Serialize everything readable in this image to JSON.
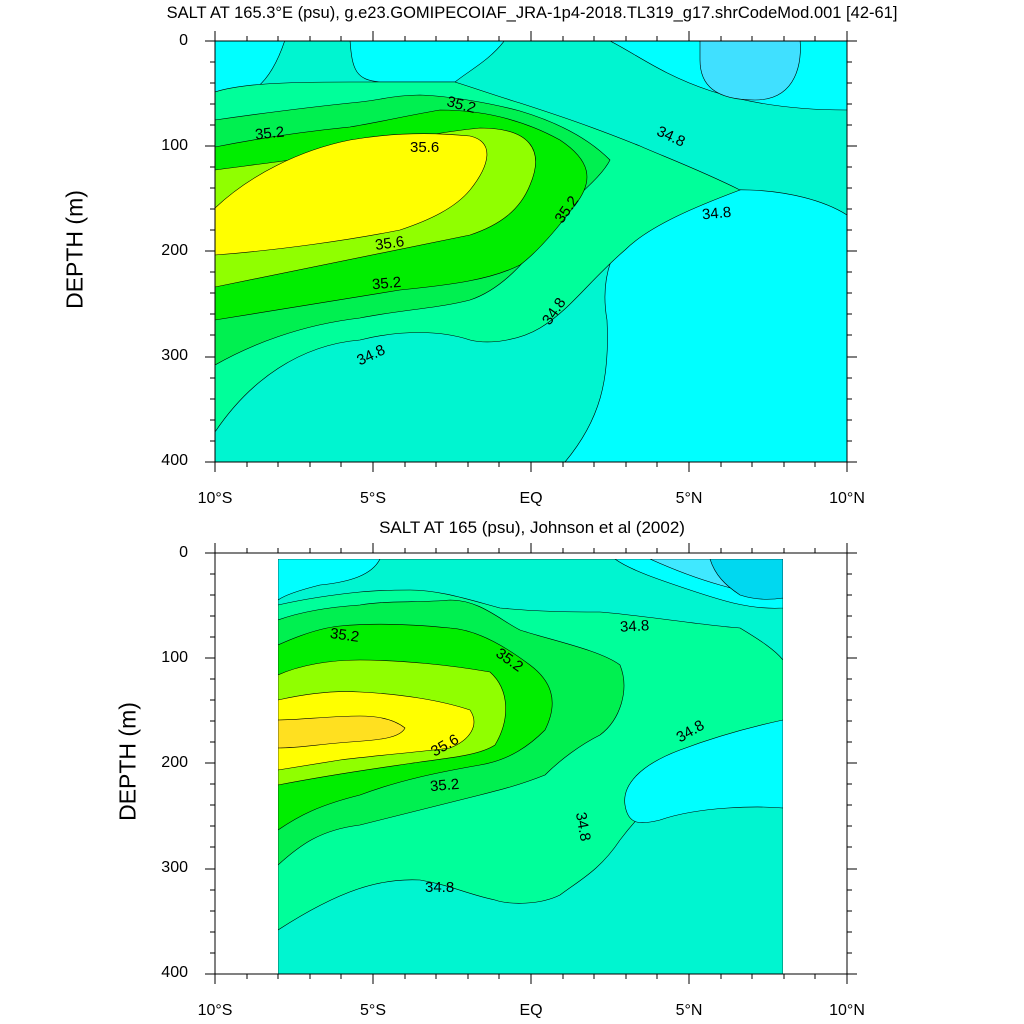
{
  "figure": {
    "panels": [
      {
        "title": "SALT AT 165.3°E (psu), g.e23.GOMIPECOIAF_JRA-1p4-2018.TL319_g17.shrCodeMod.001 [42-61]",
        "ylabel": "DEPTH (m)",
        "yticks": [
          "0",
          "100",
          "200",
          "300",
          "400"
        ],
        "xticks": [
          "10°S",
          "5°S",
          "EQ",
          "5°N",
          "10°N"
        ],
        "contour_labels": [
          "35.2",
          "35.2",
          "35.6",
          "35.6",
          "35.2",
          "34.8",
          "35.2",
          "34.8",
          "34.8",
          "34.8"
        ]
      },
      {
        "title": "SALT AT 165 (psu), Johnson et al (2002)",
        "ylabel": "DEPTH (m)",
        "yticks": [
          "0",
          "100",
          "200",
          "300",
          "400"
        ],
        "xticks": [
          "10°S",
          "5°S",
          "EQ",
          "5°N",
          "10°N"
        ],
        "contour_labels": [
          "35.2",
          "35.2",
          "35.6",
          "35.2",
          "34.8",
          "34.8",
          "34.8",
          "34.8"
        ]
      }
    ]
  },
  "chart_data": [
    {
      "type": "contour",
      "title": "SALT AT 165.3°E (psu), g.e23.GOMIPECOIAF_JRA-1p4-2018.TL319_g17.shrCodeMod.001 [42-61]",
      "xlabel": "",
      "ylabel": "DEPTH (m)",
      "xlim": [
        -10,
        10
      ],
      "ylim": [
        400,
        0
      ],
      "contour_interval": 0.2,
      "levels": [
        34.4,
        34.6,
        34.8,
        35.0,
        35.2,
        35.4,
        35.6
      ],
      "max_salinity_core": {
        "lat_range": [
          -10,
          -3
        ],
        "depth_range": [
          110,
          195
        ],
        "value": ">35.6"
      },
      "colors": {
        "lt34.4": "#40e0ff",
        "34.4": "#00ffff",
        "34.6": "#00f5d0",
        "34.8": "#00ff9a",
        "35.0": "#00f050",
        "35.2": "#00ee00",
        "35.4": "#90ff00",
        "35.6": "#ffff00"
      }
    },
    {
      "type": "contour",
      "title": "SALT AT 165 (psu), Johnson et al (2002)",
      "xlabel": "",
      "ylabel": "DEPTH (m)",
      "xlim": [
        -10,
        10
      ],
      "ylim": [
        400,
        0
      ],
      "data_lon_range": [
        -8,
        8
      ],
      "contour_interval": 0.2,
      "levels": [
        34.2,
        34.4,
        34.6,
        34.8,
        35.0,
        35.2,
        35.4,
        35.6,
        35.8
      ],
      "max_salinity_core": {
        "lat_range": [
          -8,
          -4
        ],
        "depth_range": [
          145,
          190
        ],
        "value": ">35.8"
      },
      "colors": {
        "lt34.2": "#00d8f0",
        "34.2": "#40e8ff",
        "34.4": "#00ffff",
        "34.6": "#00f5d0",
        "34.8": "#00ff9a",
        "35.0": "#00f050",
        "35.2": "#00ee00",
        "35.4": "#90ff00",
        "35.6": "#ffff00",
        "35.8": "#ffe020"
      }
    }
  ]
}
